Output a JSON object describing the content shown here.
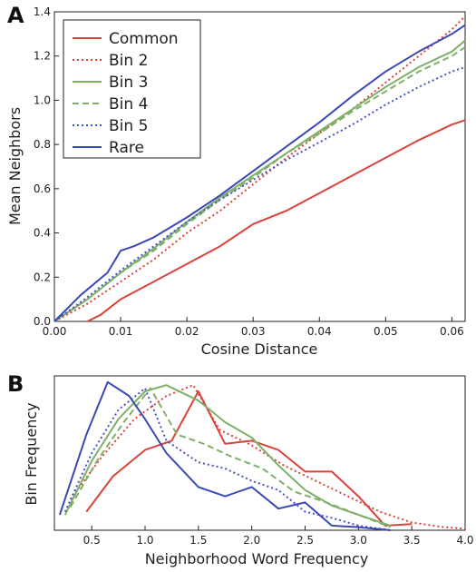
{
  "chart_data": [
    {
      "panel": "A",
      "type": "line",
      "xlabel": "Cosine Distance",
      "ylabel": "Mean Neighbors",
      "xlim": [
        0.0,
        0.062
      ],
      "ylim": [
        0.0,
        1.4
      ],
      "xticks": [
        "0.00",
        "0.01",
        "0.02",
        "0.03",
        "0.04",
        "0.05",
        "0.06"
      ],
      "yticks": [
        "0.0",
        "0.2",
        "0.4",
        "0.6",
        "0.8",
        "1.0",
        "1.2",
        "1.4"
      ],
      "xtick_values": [
        0.0,
        0.01,
        0.02,
        0.03,
        0.04,
        0.05,
        0.06
      ],
      "ytick_values": [
        0.0,
        0.2,
        0.4,
        0.6,
        0.8,
        1.0,
        1.2,
        1.4
      ],
      "grid": false,
      "legend_position": "top-left",
      "series": [
        {
          "name": "Common",
          "color": "#d9433a",
          "dash": "solid",
          "x": [
            0.005,
            0.007,
            0.01,
            0.015,
            0.02,
            0.025,
            0.03,
            0.035,
            0.04,
            0.045,
            0.05,
            0.055,
            0.06,
            0.062
          ],
          "y": [
            0.0,
            0.03,
            0.1,
            0.18,
            0.26,
            0.34,
            0.44,
            0.5,
            0.58,
            0.66,
            0.74,
            0.82,
            0.89,
            0.91
          ]
        },
        {
          "name": "Bin 2",
          "color": "#d9433a",
          "dash": "dotted",
          "x": [
            0.0,
            0.005,
            0.01,
            0.015,
            0.02,
            0.025,
            0.03,
            0.035,
            0.04,
            0.045,
            0.05,
            0.055,
            0.06,
            0.062
          ],
          "y": [
            0.0,
            0.08,
            0.18,
            0.28,
            0.4,
            0.5,
            0.62,
            0.74,
            0.85,
            0.96,
            1.08,
            1.2,
            1.32,
            1.38
          ]
        },
        {
          "name": "Bin 3",
          "color": "#7fb069",
          "dash": "solid",
          "x": [
            0.0,
            0.005,
            0.01,
            0.015,
            0.02,
            0.025,
            0.03,
            0.035,
            0.04,
            0.045,
            0.05,
            0.055,
            0.06,
            0.062
          ],
          "y": [
            0.0,
            0.1,
            0.22,
            0.33,
            0.45,
            0.56,
            0.66,
            0.76,
            0.86,
            0.96,
            1.06,
            1.15,
            1.22,
            1.27
          ]
        },
        {
          "name": "Bin 4",
          "color": "#7fb069",
          "dash": "dashed",
          "x": [
            0.0,
            0.005,
            0.01,
            0.015,
            0.02,
            0.025,
            0.03,
            0.035,
            0.04,
            0.045,
            0.05,
            0.055,
            0.06,
            0.062
          ],
          "y": [
            0.0,
            0.1,
            0.22,
            0.32,
            0.44,
            0.55,
            0.65,
            0.76,
            0.85,
            0.95,
            1.04,
            1.13,
            1.2,
            1.24
          ]
        },
        {
          "name": "Bin 5",
          "color": "#4a52c8",
          "dash": "dotted",
          "x": [
            0.0,
            0.005,
            0.01,
            0.015,
            0.02,
            0.025,
            0.03,
            0.035,
            0.04,
            0.045,
            0.05,
            0.055,
            0.06,
            0.062
          ],
          "y": [
            0.0,
            0.11,
            0.23,
            0.34,
            0.45,
            0.55,
            0.64,
            0.73,
            0.81,
            0.89,
            0.98,
            1.06,
            1.13,
            1.15
          ]
        },
        {
          "name": "Rare",
          "color": "#3b48b5",
          "dash": "solid",
          "x": [
            0.0,
            0.004,
            0.008,
            0.01,
            0.012,
            0.015,
            0.02,
            0.025,
            0.03,
            0.035,
            0.04,
            0.045,
            0.05,
            0.055,
            0.06,
            0.062
          ],
          "y": [
            0.0,
            0.12,
            0.22,
            0.32,
            0.34,
            0.38,
            0.47,
            0.57,
            0.68,
            0.79,
            0.9,
            1.02,
            1.13,
            1.22,
            1.3,
            1.34
          ]
        }
      ]
    },
    {
      "panel": "B",
      "type": "line",
      "xlabel": "Neighborhood Word Frequency",
      "ylabel": "Bin Frequency",
      "xlim": [
        0.15,
        4.0
      ],
      "ylim": [
        0.0,
        1.0
      ],
      "xticks": [
        "0.5",
        "1.0",
        "1.5",
        "2.0",
        "2.5",
        "3.0",
        "3.5",
        "4.0"
      ],
      "xtick_values": [
        0.5,
        1.0,
        1.5,
        2.0,
        2.5,
        3.0,
        3.5,
        4.0
      ],
      "grid": false,
      "series": [
        {
          "name": "Common",
          "color": "#d9433a",
          "dash": "solid",
          "x": [
            0.45,
            0.7,
            1.0,
            1.25,
            1.5,
            1.75,
            2.0,
            2.25,
            2.5,
            2.75,
            3.0,
            3.25,
            3.5
          ],
          "y": [
            0.12,
            0.35,
            0.52,
            0.58,
            0.9,
            0.56,
            0.58,
            0.52,
            0.38,
            0.38,
            0.22,
            0.03,
            0.04
          ]
        },
        {
          "name": "Bin 2",
          "color": "#d9433a",
          "dash": "dotted",
          "x": [
            0.3,
            0.6,
            0.9,
            1.2,
            1.45,
            1.7,
            2.0,
            2.3,
            2.6,
            2.9,
            3.2,
            3.5,
            3.8,
            4.0
          ],
          "y": [
            0.2,
            0.48,
            0.72,
            0.87,
            0.94,
            0.65,
            0.55,
            0.42,
            0.32,
            0.22,
            0.12,
            0.05,
            0.02,
            0.01
          ]
        },
        {
          "name": "Bin 3",
          "color": "#7fb069",
          "dash": "solid",
          "x": [
            0.25,
            0.5,
            0.75,
            1.0,
            1.2,
            1.5,
            1.75,
            2.0,
            2.25,
            2.5,
            2.75,
            3.0,
            3.3
          ],
          "y": [
            0.1,
            0.45,
            0.72,
            0.9,
            0.94,
            0.84,
            0.7,
            0.6,
            0.42,
            0.26,
            0.16,
            0.1,
            0.03
          ]
        },
        {
          "name": "Bin 4",
          "color": "#7fb069",
          "dash": "dashed",
          "x": [
            0.3,
            0.55,
            0.8,
            1.05,
            1.3,
            1.55,
            1.8,
            2.1,
            2.4,
            2.7,
            3.0,
            3.3
          ],
          "y": [
            0.15,
            0.45,
            0.7,
            0.92,
            0.62,
            0.56,
            0.48,
            0.4,
            0.25,
            0.18,
            0.1,
            0.02
          ]
        },
        {
          "name": "Bin 5",
          "color": "#4a52c8",
          "dash": "dotted",
          "x": [
            0.25,
            0.5,
            0.75,
            1.0,
            1.2,
            1.5,
            1.75,
            2.0,
            2.25,
            2.5,
            2.75,
            3.0,
            3.3
          ],
          "y": [
            0.12,
            0.5,
            0.78,
            0.92,
            0.58,
            0.44,
            0.4,
            0.32,
            0.26,
            0.12,
            0.08,
            0.03,
            0.0
          ]
        },
        {
          "name": "Rare",
          "color": "#3b48b5",
          "dash": "solid",
          "x": [
            0.2,
            0.45,
            0.65,
            0.85,
            1.0,
            1.2,
            1.5,
            1.75,
            2.0,
            2.25,
            2.5,
            2.75,
            3.0,
            3.3
          ],
          "y": [
            0.1,
            0.62,
            0.96,
            0.87,
            0.72,
            0.5,
            0.28,
            0.22,
            0.28,
            0.14,
            0.18,
            0.03,
            0.02,
            0.0
          ]
        }
      ]
    }
  ],
  "labels": {
    "panel_a": "A",
    "panel_b": "B"
  }
}
